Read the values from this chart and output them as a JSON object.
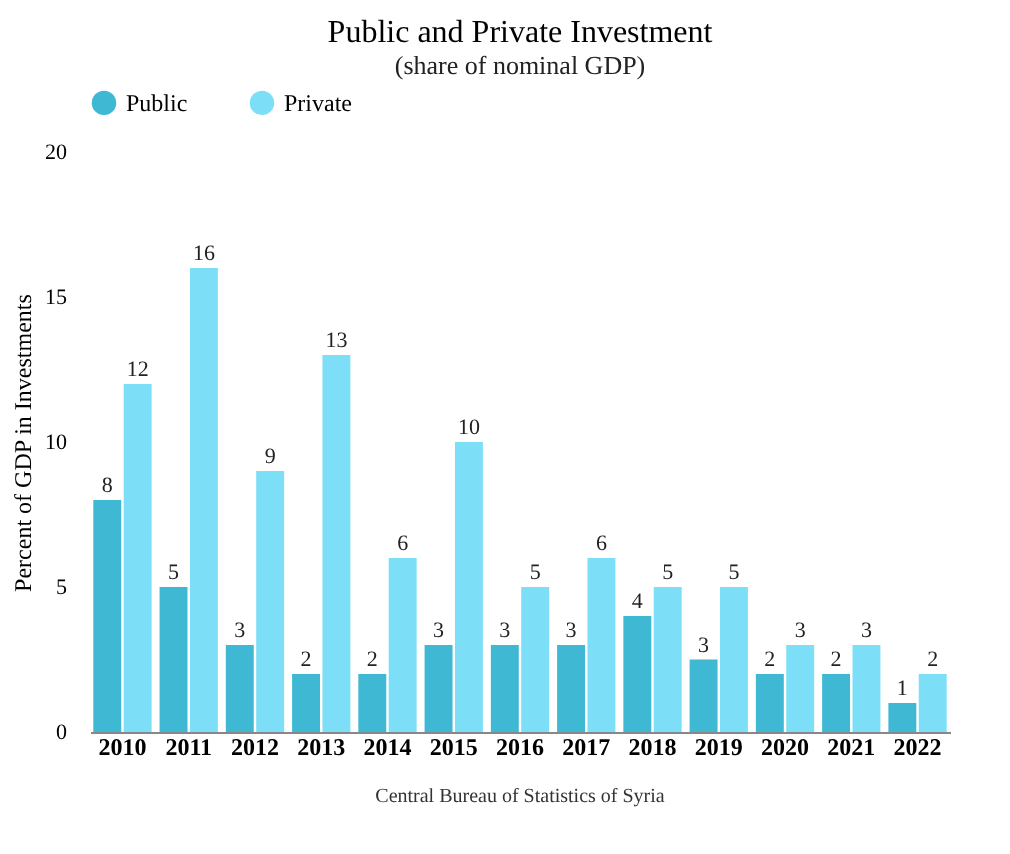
{
  "chart_data": {
    "type": "bar",
    "title": "Public and Private Investment",
    "subtitle": "(share of nominal GDP)",
    "ylabel": "Percent of GDP in Investments",
    "categories": [
      "2010",
      "2011",
      "2012",
      "2013",
      "2014",
      "2015",
      "2016",
      "2017",
      "2018",
      "2019",
      "2020",
      "2021",
      "2022"
    ],
    "series": [
      {
        "name": "Public",
        "color": "#3fb8d4",
        "values": [
          8,
          5,
          3,
          2,
          2,
          3,
          3,
          3,
          4,
          2.5,
          2,
          2,
          1
        ],
        "value_labels": [
          "8",
          "5",
          "3",
          "2",
          "2",
          "3",
          "3",
          "3",
          "4",
          "3",
          "2",
          "2",
          "1"
        ]
      },
      {
        "name": "Private",
        "color": "#7ddff7",
        "values": [
          12,
          16,
          9,
          13,
          6,
          10,
          5,
          6,
          5,
          5,
          3,
          3,
          2
        ],
        "value_labels": [
          "12",
          "16",
          "9",
          "13",
          "6",
          "10",
          "5",
          "6",
          "5",
          "5",
          "3",
          "3",
          "2"
        ]
      }
    ],
    "ylim": [
      0,
      20
    ],
    "yticks": [
      0,
      5,
      10,
      15,
      20
    ],
    "grid": false,
    "legend": "top",
    "annotations": [
      "Central Bureau of Statistics of Syria"
    ]
  }
}
